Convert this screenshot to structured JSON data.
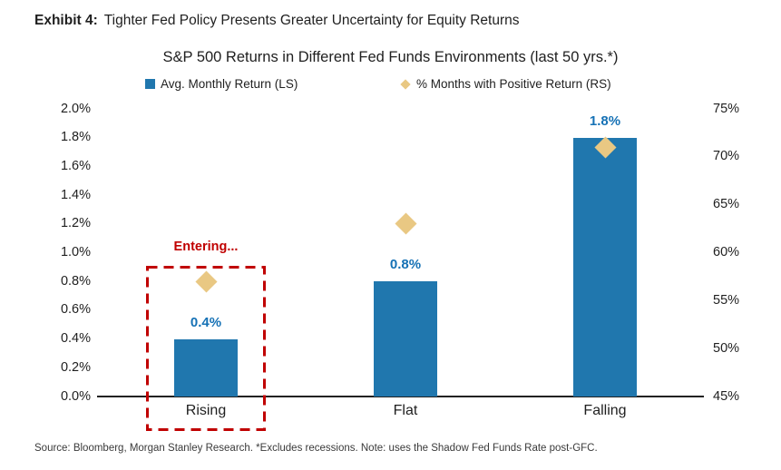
{
  "exhibit": {
    "label": "Exhibit 4:",
    "title": "Tighter Fed Policy Presents Greater Uncertainty for Equity Returns"
  },
  "source_note": "Source: Bloomberg, Morgan Stanley Research. *Excludes recessions. Note: uses the Shadow Fed Funds Rate post-GFC.",
  "colors": {
    "bar_blue": "#2077AE",
    "bar_label_blue": "#1571B5",
    "diamond_tan": "#E9C883",
    "annotation_red": "#C00000",
    "text": "#1F1F1F"
  },
  "chart_data": {
    "type": "bar",
    "title": "S&P 500 Returns in Different Fed Funds Environments (last 50 yrs.*)",
    "categories": [
      "Rising",
      "Flat",
      "Falling"
    ],
    "series": [
      {
        "name": "Avg. Monthly Return (LS)",
        "marker": "bar",
        "axis": "left",
        "color": "#2077AE",
        "values": [
          0.4,
          0.8,
          1.8
        ],
        "value_labels": [
          "0.4%",
          "0.8%",
          "1.8%"
        ]
      },
      {
        "name": "% Months with Positive Return (RS)",
        "marker": "diamond",
        "axis": "right",
        "color": "#E9C883",
        "values": [
          57,
          63,
          71
        ]
      }
    ],
    "left_axis": {
      "min": 0.0,
      "max": 2.0,
      "step": 0.2,
      "tick_labels": [
        "2.0%",
        "1.8%",
        "1.6%",
        "1.4%",
        "1.2%",
        "1.0%",
        "0.8%",
        "0.6%",
        "0.4%",
        "0.2%",
        "0.0%"
      ]
    },
    "right_axis": {
      "min": 45,
      "max": 75,
      "step": 5,
      "tick_labels": [
        "75%",
        "70%",
        "65%",
        "60%",
        "55%",
        "50%",
        "45%"
      ]
    },
    "annotation": {
      "text": "Entering...",
      "target_category": "Rising",
      "style": "red-dashed-box",
      "color": "#C00000"
    },
    "legend_position": "top",
    "grid": false
  }
}
